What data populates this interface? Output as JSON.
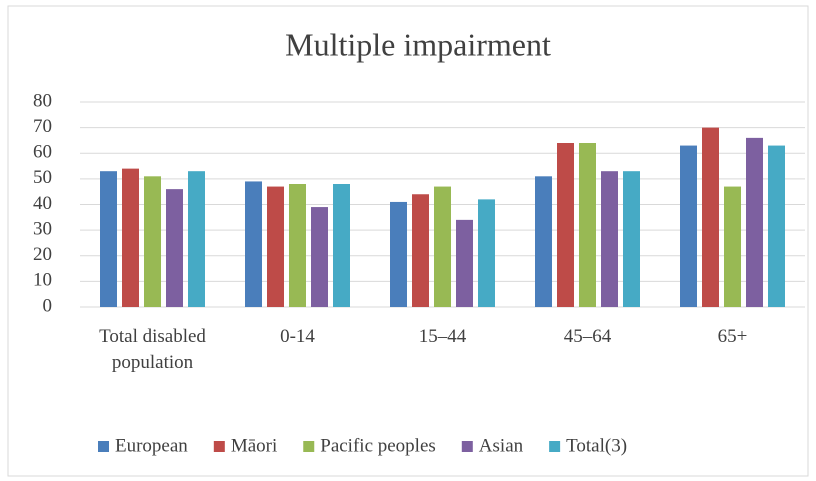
{
  "chart_data": {
    "type": "bar",
    "title": "Multiple impairment",
    "categories": [
      "Total disabled population",
      "0-14",
      "15–44",
      "45–64",
      "65+"
    ],
    "series": [
      {
        "name": "European",
        "color": "#4a7ebb",
        "values": [
          53,
          49,
          41,
          51,
          63
        ]
      },
      {
        "name": "Māori",
        "color": "#be4b48",
        "values": [
          54,
          47,
          44,
          64,
          70
        ]
      },
      {
        "name": "Pacific peoples",
        "color": "#98b954",
        "values": [
          51,
          48,
          47,
          64,
          47
        ]
      },
      {
        "name": "Asian",
        "color": "#7d60a0",
        "values": [
          46,
          39,
          34,
          53,
          66
        ]
      },
      {
        "name": "Total(3)",
        "color": "#46aac5",
        "values": [
          53,
          48,
          42,
          53,
          63
        ]
      }
    ],
    "ylim": [
      0,
      80
    ],
    "yticks": [
      0,
      10,
      20,
      30,
      40,
      50,
      60,
      70,
      80
    ],
    "grid": true,
    "legend": "bottom"
  }
}
